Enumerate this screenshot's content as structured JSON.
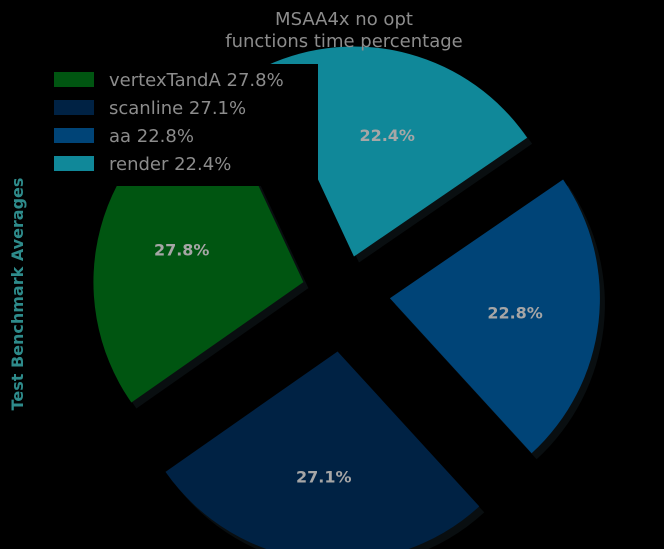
{
  "chart_data": {
    "type": "pie",
    "title_lines": [
      "MSAA4x no opt",
      "functions time percentage"
    ],
    "ylabel": "Test Benchmark Averages",
    "slices": [
      {
        "name": "vertexTandA",
        "value": 27.8,
        "label": "27.8%",
        "legend": "vertexTandA 27.8%",
        "color": "#005511"
      },
      {
        "name": "scanline",
        "value": 27.1,
        "label": "27.1%",
        "legend": "scanline 27.1%",
        "color": "#002244"
      },
      {
        "name": "aa",
        "value": 22.8,
        "label": "22.8%",
        "legend": "aa 22.8%",
        "color": "#004477"
      },
      {
        "name": "render",
        "value": 22.4,
        "label": "22.4%",
        "legend": "render 22.4%",
        "color": "#108899"
      }
    ],
    "start_angle_deg": 115,
    "direction": "counterclockwise",
    "exploded": true,
    "shadow": true,
    "legend_position": "top-left"
  }
}
